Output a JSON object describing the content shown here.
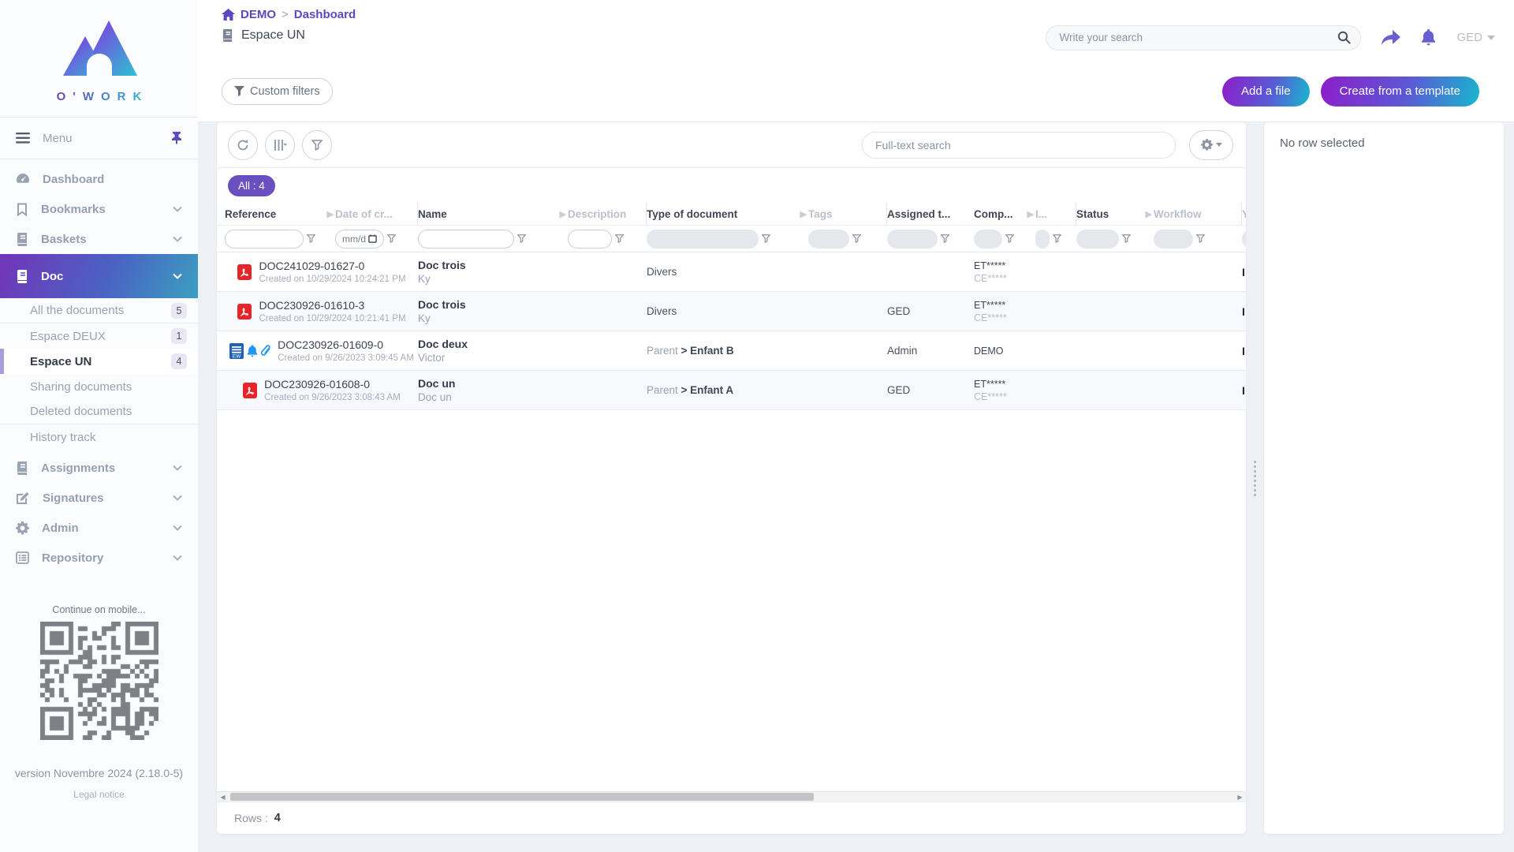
{
  "brand": {
    "wordmark": "O'WORK"
  },
  "header": {
    "breadcrumb": {
      "home": "DEMO",
      "separator": ">",
      "current": "Dashboard"
    },
    "space_title": "Espace UN",
    "search_placeholder": "Write your search",
    "user_menu": "GED"
  },
  "actionbar": {
    "custom_filters": "Custom filters",
    "add_file": "Add a file",
    "create_template": "Create from a template"
  },
  "sidebar": {
    "menu_label": "Menu",
    "items": {
      "dashboard": "Dashboard",
      "bookmarks": "Bookmarks",
      "baskets": "Baskets",
      "doc": "Doc",
      "assignments": "Assignments",
      "signatures": "Signatures",
      "admin": "Admin",
      "repository": "Repository"
    },
    "doc_children": [
      {
        "label": "All the documents",
        "count": "5",
        "sep_after": true
      },
      {
        "label": "Espace DEUX",
        "count": "1"
      },
      {
        "label": "Espace UN",
        "count": "4",
        "active": true
      },
      {
        "label": "Sharing documents"
      },
      {
        "label": "Deleted documents",
        "sep_after": true
      },
      {
        "label": "History track"
      }
    ],
    "mobile_hint": "Continue on mobile...",
    "version": "version Novembre 2024 (2.18.0-5)",
    "legal": "Legal notice"
  },
  "table": {
    "fulltext_placeholder": "Full-text search",
    "all_chip": "All : 4",
    "date_filter_placeholder": "mm/d",
    "columns": [
      {
        "label": "Reference"
      },
      {
        "label": "Date of cr..."
      },
      {
        "label": "Name"
      },
      {
        "label": "Description"
      },
      {
        "label": "Type of document"
      },
      {
        "label": "Tags"
      },
      {
        "label": "Assigned t..."
      },
      {
        "label": "Comp..."
      },
      {
        "label": "I..."
      },
      {
        "label": "Status"
      },
      {
        "label": "Workflow"
      },
      {
        "label": "Y..."
      }
    ],
    "rows": [
      {
        "icons": [
          "pdf"
        ],
        "reference": "DOC241029-01627-0",
        "created": "Created on 10/29/2024 10:24:21 PM",
        "name": "Doc trois",
        "name_sub": "Ky",
        "type_parent": "",
        "type": "Divers",
        "type_bold": false,
        "assigned": "",
        "comp1": "ET*****",
        "comp2": "CE*****",
        "edge": "I"
      },
      {
        "icons": [
          "pdf"
        ],
        "reference": "DOC230926-01610-3",
        "created": "Created on 10/29/2024 10:21:41 PM",
        "name": "Doc trois",
        "name_sub": "Ky",
        "type_parent": "",
        "type": "Divers",
        "type_bold": false,
        "assigned": "GED",
        "comp1": "ET*****",
        "comp2": "CE*****",
        "edge": "I"
      },
      {
        "icons": [
          "worddoc",
          "bell",
          "paperclip"
        ],
        "reference": "DOC230926-01609-0",
        "created": "Created on 9/26/2023 3:09:45 AM",
        "name": "Doc deux",
        "name_sub": "Victor",
        "type_parent": "Parent",
        "type": "Enfant B",
        "type_bold": true,
        "assigned": "Admin",
        "comp1": "DEMO",
        "comp2": "",
        "edge": "I"
      },
      {
        "icons": [
          "pdf"
        ],
        "reference": "DOC230926-01608-0",
        "created": "Created on 9/26/2023 3:08:43 AM",
        "name": "Doc un",
        "name_sub": "Doc un",
        "type_parent": "Parent",
        "type": "Enfant A",
        "type_bold": true,
        "assigned": "GED",
        "comp1": "ET*****",
        "comp2": "CE*****",
        "edge": "I"
      }
    ],
    "rows_label": "Rows :",
    "rows_count": "4"
  },
  "detail_panel": {
    "empty_text": "No row selected"
  }
}
